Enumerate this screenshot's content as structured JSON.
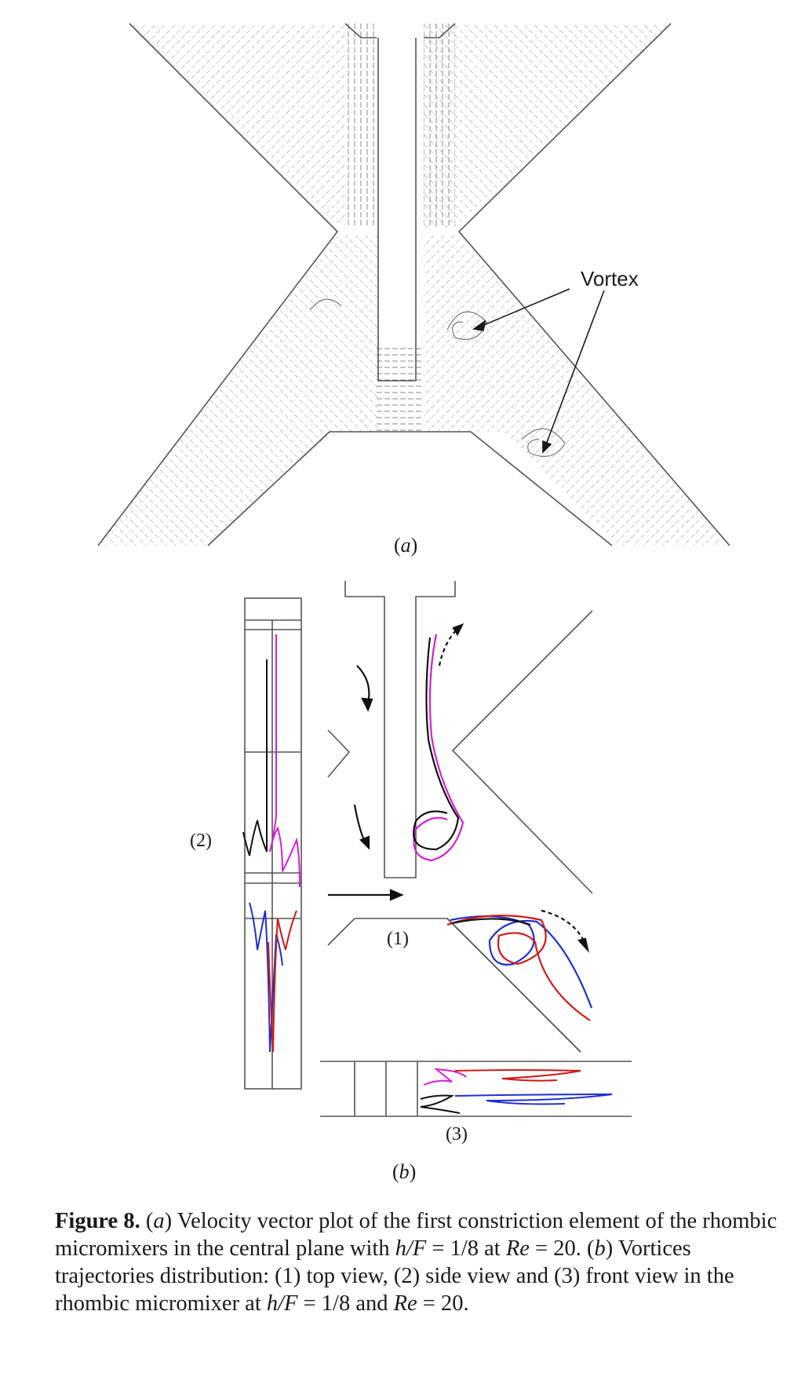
{
  "figure": {
    "panel_a": {
      "label": "a",
      "annotation": "Vortex"
    },
    "panel_b": {
      "label": "b",
      "view_labels": {
        "top": "(1)",
        "side": "(2)",
        "front": "(3)"
      }
    },
    "caption": {
      "number": "Figure 8.",
      "a_marker": "a",
      "a_text": "Velocity vector plot of the first constriction element of the rhombic micromixers in the central plane with",
      "hf_var": "h/F",
      "eq1": "= 1/8",
      "at": "at",
      "re_var": "Re",
      "eq2": "= 20.",
      "b_marker": "b",
      "b_text": "Vortices trajectories distribution: (1) top view, (2) side view and (3) front view in the rhombic micromixer at",
      "hf_var2": "h/F",
      "eq3": "= 1/8",
      "and": "and",
      "re_var2": "Re",
      "eq4": "= 20."
    },
    "colors": {
      "magenta": "#d61fd0",
      "black": "#111111",
      "blue": "#1f2fd0",
      "red": "#d01818",
      "line": "#555555"
    }
  }
}
